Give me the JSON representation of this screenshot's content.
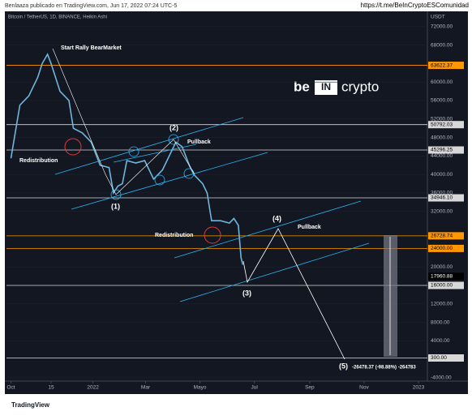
{
  "header": {
    "author": "Benlaaza publicado en TradingView.com, Jun 17, 2022 07:24 UTC-5",
    "link": "https://t.me/BeInCryptoESComunidad"
  },
  "brand": {
    "left": "be",
    "mid": "IN",
    "right": "crypto"
  },
  "footer": "TradingView",
  "chart_data": {
    "type": "line",
    "title": "Bitcoin / TetherUS, 1D, BINANCE, Heikin Ashi",
    "y_unit": "USDT",
    "x": [
      0,
      10,
      20,
      30,
      35,
      41,
      45,
      55,
      65,
      70,
      80,
      90,
      100,
      110,
      115,
      120,
      125,
      130,
      140,
      150,
      160,
      170,
      180,
      185,
      192,
      200,
      205,
      215,
      220,
      225,
      235,
      245,
      250,
      255,
      258,
      260
    ],
    "series": [
      {
        "color": "#6fb6dc",
        "values": [
          43500,
          55000,
          57000,
          61000,
          64000,
          66000,
          64000,
          58000,
          56000,
          50000,
          49000,
          47000,
          42000,
          41500,
          36000,
          37500,
          38000,
          43000,
          42500,
          43000,
          39000,
          41000,
          45000,
          47000,
          46000,
          42000,
          40000,
          38000,
          36000,
          30000,
          30000,
          29500,
          30500,
          29000,
          22000,
          20500
        ]
      }
    ],
    "xlim": [
      -5,
      467
    ],
    "xticks": [
      {
        "value": 0,
        "label": "Oct"
      },
      {
        "value": 45,
        "label": "15"
      },
      {
        "value": 92,
        "label": "2022"
      },
      {
        "value": 151,
        "label": "Mar"
      },
      {
        "value": 212,
        "label": "Mayo"
      },
      {
        "value": 273,
        "label": "Jul"
      },
      {
        "value": 335,
        "label": "Sep"
      },
      {
        "value": 396,
        "label": "Nov"
      },
      {
        "value": 457,
        "label": "2023"
      }
    ],
    "ylim": [
      -4700,
      75300
    ],
    "yticks": [
      {
        "value": 72000,
        "label": "72000.00"
      },
      {
        "value": 68000,
        "label": "68000.00"
      },
      {
        "value": 60000,
        "label": "60000.00"
      },
      {
        "value": 56000,
        "label": "56000.00"
      },
      {
        "value": 52000,
        "label": "52000.00"
      },
      {
        "value": 48000,
        "label": "48000.00"
      },
      {
        "value": 44000,
        "label": "44000.00"
      },
      {
        "value": 40000,
        "label": "40000.00"
      },
      {
        "value": 36000,
        "label": "36000.00"
      },
      {
        "value": 32000,
        "label": "32000.00"
      },
      {
        "value": 20000,
        "label": "20000.00"
      },
      {
        "value": 12000,
        "label": "12000.00"
      },
      {
        "value": 8000,
        "label": "8000.00"
      },
      {
        "value": 4000,
        "label": "4000.00"
      },
      {
        "value": -4000,
        "label": "-4000.00"
      }
    ],
    "levels": [
      {
        "value": 63622.37,
        "label": "63622.37",
        "color": "#ff9800"
      },
      {
        "value": 50792.03,
        "label": "50792.03",
        "color": "#d8d8d8"
      },
      {
        "value": 45296.25,
        "label": "45296.25",
        "color": "#d8d8d8"
      },
      {
        "value": 34946.1,
        "label": "34946.10",
        "color": "#d8d8d8"
      },
      {
        "value": 26728.74,
        "label": "26728.74",
        "color": "#ff9800"
      },
      {
        "value": 24000,
        "label": "24000.00",
        "color": "#ff9800"
      },
      {
        "value": 17960.88,
        "label": "17960.88",
        "color": "#000000"
      },
      {
        "value": 16000,
        "label": "16000.00",
        "color": "#d8d8d8"
      },
      {
        "value": 300,
        "label": "300.00",
        "color": "#d8d8d8"
      }
    ],
    "annotations": [
      "Start Rally BearMarket",
      "(2)",
      "Pullback",
      "Redistribution",
      "(1)",
      "Redistribution",
      "(4)",
      "Pullback",
      "(3)",
      "(5)",
      "-26478.37 (-98.88%) -264783"
    ]
  }
}
